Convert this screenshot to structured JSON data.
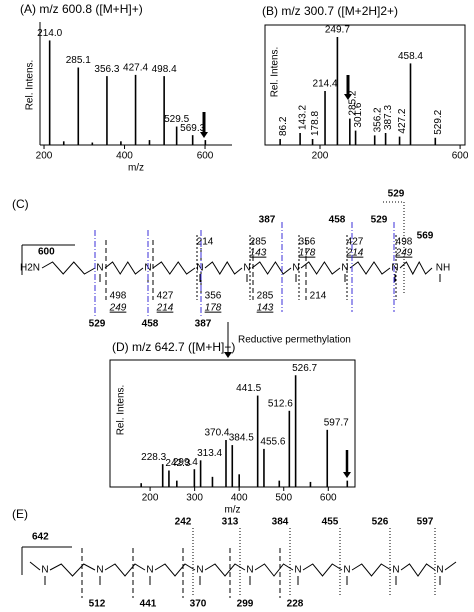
{
  "chart_data": [
    {
      "type": "stem",
      "title": "(A) m/z 600.8 ([M+H]+)",
      "xlabel": "m/z",
      "ylabel": "Rel. Intens.",
      "color": "#000000",
      "x": [
        214.0,
        249,
        285.1,
        320,
        356.3,
        391,
        427.4,
        462,
        498.4,
        529.5,
        569.3,
        600.8
      ],
      "values": [
        85,
        3,
        63,
        2,
        56,
        3,
        57,
        4,
        56,
        15,
        8,
        4
      ],
      "labels": [
        "214.0",
        null,
        "285.1",
        null,
        "356.3",
        null,
        "427.4",
        null,
        "498.4",
        "529.5",
        "569.3",
        null
      ],
      "label_colors": [
        "#000000",
        "#000000",
        "#000000",
        "#000000",
        "#000000",
        "#000000",
        "#000000",
        "#000000",
        "#000000",
        "#4a8a1a",
        "#e02020",
        "#000000"
      ],
      "xlim": [
        190,
        667
      ],
      "ylim": [
        0,
        100
      ],
      "xticks": [
        200,
        400,
        600
      ]
    },
    {
      "type": "stem",
      "title": "(B) m/z 300.7 ([M+2H]2+)",
      "ylabel": "Rel. Intens.",
      "color": "#000000",
      "x": [
        86.2,
        143.2,
        178.8,
        214.4,
        249.7,
        285.2,
        301.6,
        356.2,
        387.3,
        427.2,
        458.4,
        529.2
      ],
      "values": [
        5,
        10,
        5,
        45,
        90,
        22,
        12,
        8,
        10,
        7,
        68,
        6
      ],
      "labels": [
        "86.2",
        "143.2",
        "178.8",
        "214.4",
        "249.7",
        "285.2",
        "301.6",
        "356.2",
        "387.3",
        "427.2",
        "458.4",
        "529.2"
      ],
      "label_colors": [
        "#000000",
        "#000000",
        "#000000",
        "#000000",
        "#000000",
        "#000000",
        "#000000",
        "#000000",
        "#3b2fd8",
        "#000000",
        "#3b2fd8",
        "#3b2fd8"
      ],
      "xlim": [
        43,
        614
      ],
      "ylim": [
        0,
        100
      ],
      "xticks": [
        200,
        600
      ]
    },
    {
      "type": "stem",
      "title": "(D) m/z 642.7 ([M+H]+)",
      "xlabel": "m/z",
      "ylabel": "Rel. Intens.",
      "color": "#000000",
      "x": [
        180,
        228.3,
        242.3,
        260,
        299.4,
        313.4,
        340,
        370.4,
        384.5,
        400,
        441.5,
        455.6,
        490,
        512.6,
        526.7,
        560,
        597.7,
        642.7
      ],
      "values": [
        3,
        18,
        13,
        5,
        14,
        21,
        8,
        37,
        33,
        10,
        72,
        30,
        5,
        60,
        88,
        4,
        45,
        5
      ],
      "labels": [
        null,
        "228.3",
        "242.3",
        null,
        "299.4",
        "313.4",
        null,
        "370.4",
        "384.5",
        null,
        "441.5",
        "455.6",
        null,
        "512.6",
        "526.7",
        null,
        "597.7",
        null
      ],
      "label_colors": [
        "#000000",
        "#e02020",
        "#1f6bb5",
        "#000000",
        "#e02020",
        "#1f6bb5",
        "#000000",
        "#e02020",
        "#1f6bb5",
        "#000000",
        "#e02020",
        "#1f6bb5",
        "#000000",
        "#e02020",
        "#1f6bb5",
        "#000000",
        "#1f6bb5",
        "#000000"
      ],
      "xlim": [
        110,
        660
      ],
      "ylim": [
        0,
        100
      ],
      "xticks": [
        200,
        300,
        400,
        500,
        600
      ]
    }
  ],
  "structure_c": {
    "label": "(C)",
    "precursor": 600,
    "amine_end": "H2N",
    "imine_end": "NH",
    "atom": "N",
    "top_fragments": [
      214,
      285,
      356,
      427,
      498
    ],
    "top_sub_fragments": [
      143,
      178,
      214,
      249
    ],
    "bottom_fragments": [
      498,
      427,
      356,
      285,
      214
    ],
    "bottom_sub_fragments": [
      249,
      214,
      178,
      143
    ],
    "top_blue": [
      387,
      458,
      529
    ],
    "bottom_blue": [
      529,
      458,
      387
    ],
    "green": 529,
    "red": 569
  },
  "reaction": "Reductive permethylation",
  "structure_e": {
    "label": "(E)",
    "precursor": 642,
    "atom": "N",
    "top_fragments": [
      242,
      313,
      384,
      455,
      526,
      597
    ],
    "bottom_fragments": [
      512,
      441,
      370,
      299,
      228
    ]
  }
}
